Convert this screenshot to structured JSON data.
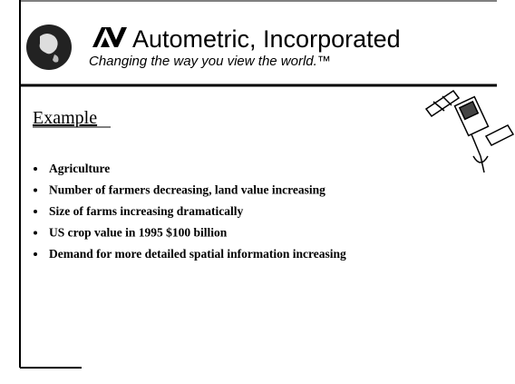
{
  "header": {
    "company": "Autometric, Incorporated",
    "tagline": "Changing the way you view the world.™"
  },
  "slide": {
    "heading": "Example",
    "bullets": [
      "Agriculture",
      "Number of farmers decreasing, land value increasing",
      "Size of farms increasing dramatically",
      "US crop value in 1995 $100 billion",
      "Demand for more detailed spatial information increasing"
    ]
  }
}
